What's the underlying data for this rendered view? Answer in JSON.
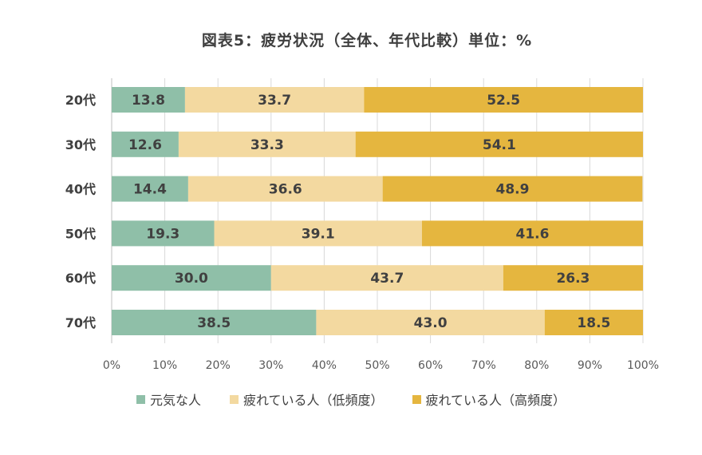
{
  "colors": {
    "series": [
      "#8fbfa8",
      "#f3d9a0",
      "#e5b63f"
    ],
    "grid": "#d9d9d9",
    "axis": "#bfbfbf"
  },
  "chart_data": {
    "type": "bar",
    "orientation": "horizontal",
    "stacked": true,
    "title": "図表5：疲労状況（全体、年代比較）単位：%",
    "categories": [
      "20代",
      "30代",
      "40代",
      "50代",
      "60代",
      "70代"
    ],
    "series": [
      {
        "name": "元気な人",
        "values": [
          13.8,
          12.6,
          14.4,
          19.3,
          30.0,
          38.5
        ]
      },
      {
        "name": "疲れている人（低頻度）",
        "values": [
          33.7,
          33.3,
          36.6,
          39.1,
          43.7,
          43.0
        ]
      },
      {
        "name": "疲れている人（高頻度）",
        "values": [
          52.5,
          54.1,
          48.9,
          41.6,
          26.3,
          18.5
        ]
      }
    ],
    "value_labels": [
      [
        "13.8",
        "12.6",
        "14.4",
        "19.3",
        "30.0",
        "38.5"
      ],
      [
        "33.7",
        "33.3",
        "36.6",
        "39.1",
        "43.7",
        "43.0"
      ],
      [
        "52.5",
        "54.1",
        "48.9",
        "41.6",
        "26.3",
        "18.5"
      ]
    ],
    "xlim": [
      0,
      100
    ],
    "xticks": [
      "0%",
      "10%",
      "20%",
      "30%",
      "40%",
      "50%",
      "60%",
      "70%",
      "80%",
      "90%",
      "100%"
    ],
    "grid": true,
    "legend_position": "bottom"
  }
}
